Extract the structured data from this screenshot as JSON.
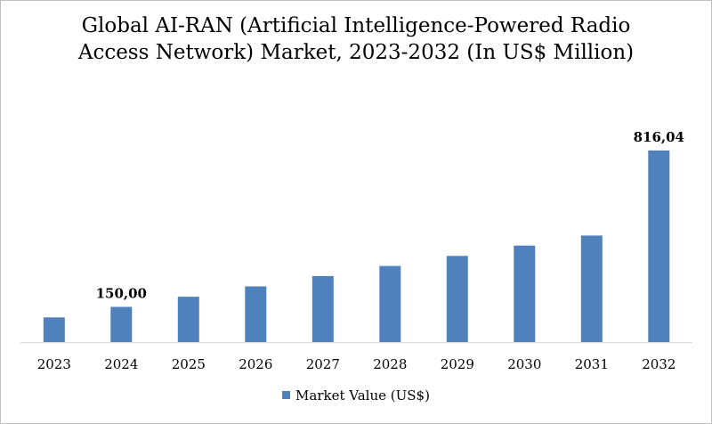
{
  "chart_data": {
    "type": "bar",
    "title": "Global AI-RAN (Artificial Intelligence-Powered Radio Access Network) Market, 2023-2032 (In US$ Million)",
    "categories": [
      "2023",
      "2024",
      "2025",
      "2026",
      "2027",
      "2028",
      "2029",
      "2030",
      "2031",
      "2032"
    ],
    "series": [
      {
        "name": "Market Value (US$)",
        "values": [
          105,
          150,
          193,
          237,
          281,
          324,
          367,
          411,
          454,
          816.04
        ]
      }
    ],
    "data_labels": {
      "1": "150,00",
      "9": "816,04"
    },
    "ylim": [
      0,
      850
    ],
    "grid": false,
    "legend_position": "bottom",
    "bar_color": "#4f81bd"
  }
}
